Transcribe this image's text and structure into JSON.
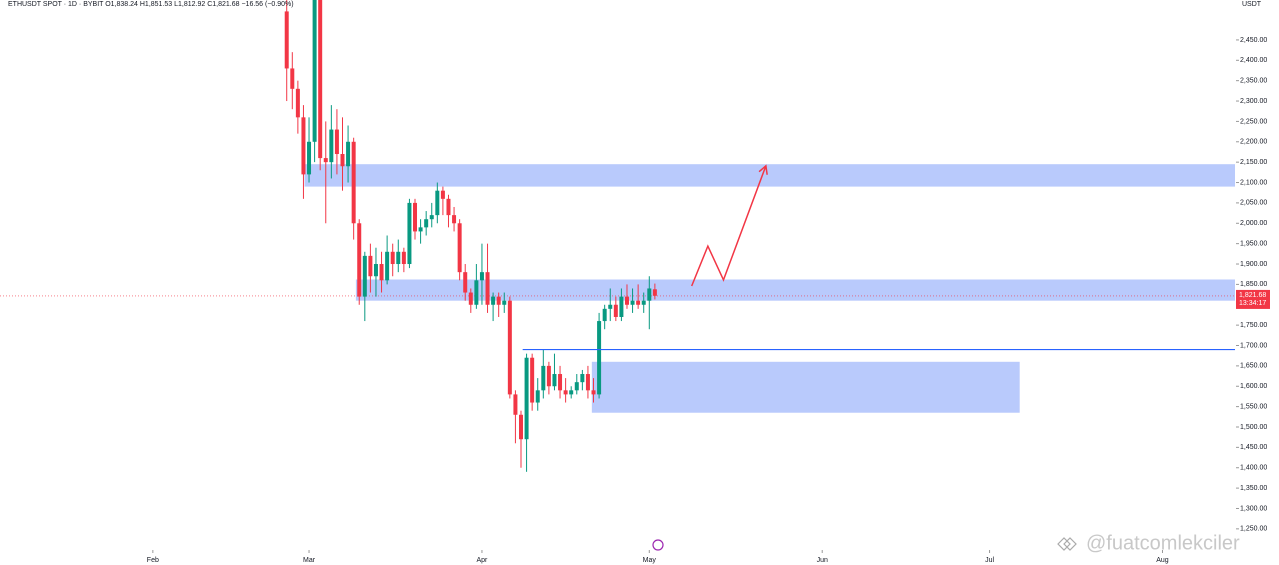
{
  "chart_data": {
    "type": "candlestick",
    "header": "ETHUSDT SPOT · 1D · BYBIT  O1,838.24 H1,851.53 L1,812.92 C1,821.68 −16.56 (−0.90%)",
    "currency": "USDT",
    "watermark": "@fuatcomlekciler",
    "up_color": "#089981",
    "down_color": "#f23645",
    "x": [
      56,
      57,
      58,
      59,
      60,
      61,
      62,
      63,
      64,
      65,
      66,
      67,
      68,
      69,
      70,
      71,
      72,
      73,
      74,
      75,
      76,
      77,
      78,
      79,
      80,
      81,
      82,
      83,
      84,
      85,
      86,
      87,
      88,
      89,
      90,
      91,
      92,
      93,
      94,
      95,
      96,
      97,
      98,
      99,
      100,
      101,
      102,
      103,
      104,
      105,
      106,
      107,
      108,
      109,
      110,
      111,
      112,
      113,
      114,
      115,
      116,
      117,
      118,
      119,
      120,
      121,
      122
    ],
    "open": [
      2520,
      2380,
      2330,
      2260,
      2120,
      2200,
      2550,
      2160,
      2150,
      2230,
      2170,
      2140,
      2200,
      2000,
      1820,
      1920,
      1870,
      1900,
      1860,
      1930,
      1900,
      1930,
      1900,
      2050,
      1980,
      1990,
      2010,
      2020,
      2080,
      2060,
      2020,
      2000,
      1880,
      1830,
      1800,
      1860,
      1880,
      1800,
      1820,
      1800,
      1810,
      1580,
      1530,
      1470,
      1670,
      1560,
      1590,
      1650,
      1600,
      1630,
      1590,
      1580,
      1590,
      1610,
      1630,
      1590,
      1580,
      1760,
      1790,
      1800,
      1770,
      1820,
      1800,
      1810,
      1800,
      1810,
      1838
    ],
    "high": [
      2550,
      2420,
      2350,
      2290,
      2260,
      2560,
      2560,
      2250,
      2290,
      2280,
      2260,
      2240,
      2210,
      2010,
      1930,
      1950,
      1940,
      1930,
      1970,
      1950,
      1960,
      1940,
      2060,
      2060,
      2010,
      2030,
      2050,
      2100,
      2090,
      2070,
      2040,
      2010,
      1900,
      1840,
      1900,
      1950,
      1950,
      1830,
      1830,
      1830,
      1820,
      1590,
      1540,
      1680,
      1680,
      1620,
      1690,
      1660,
      1680,
      1650,
      1620,
      1600,
      1630,
      1640,
      1650,
      1620,
      1780,
      1800,
      1840,
      1820,
      1840,
      1850,
      1840,
      1850,
      1830,
      1870,
      1852
    ],
    "low": [
      2300,
      2280,
      2220,
      2060,
      2100,
      2150,
      2130,
      2000,
      2110,
      2120,
      2080,
      2100,
      1960,
      1800,
      1760,
      1830,
      1820,
      1830,
      1850,
      1870,
      1880,
      1880,
      1890,
      1960,
      1950,
      1970,
      1990,
      2000,
      2020,
      1990,
      1980,
      1860,
      1810,
      1780,
      1790,
      1800,
      1780,
      1760,
      1770,
      1780,
      1570,
      1460,
      1400,
      1390,
      1540,
      1540,
      1570,
      1580,
      1590,
      1570,
      1560,
      1570,
      1580,
      1590,
      1570,
      1560,
      1570,
      1740,
      1760,
      1760,
      1760,
      1790,
      1780,
      1790,
      1780,
      1740,
      1813
    ],
    "close": [
      2380,
      2330,
      2260,
      2120,
      2200,
      2550,
      2160,
      2150,
      2230,
      2170,
      2140,
      2200,
      2000,
      1820,
      1920,
      1870,
      1900,
      1860,
      1930,
      1900,
      1930,
      1900,
      2050,
      1980,
      1990,
      2010,
      2020,
      2080,
      2060,
      2020,
      2000,
      1880,
      1830,
      1800,
      1860,
      1880,
      1800,
      1820,
      1800,
      1810,
      1580,
      1530,
      1470,
      1670,
      1560,
      1590,
      1650,
      1600,
      1630,
      1590,
      1580,
      1590,
      1610,
      1630,
      1590,
      1580,
      1760,
      1790,
      1800,
      1770,
      1820,
      1800,
      1810,
      1800,
      1810,
      1840,
      1822
    ],
    "xlim": [
      4.6,
      226
    ],
    "xticks": [
      {
        "value": 32,
        "label": "Feb"
      },
      {
        "value": 60,
        "label": "Mar"
      },
      {
        "value": 91,
        "label": "Apr"
      },
      {
        "value": 121,
        "label": "May"
      },
      {
        "value": 152,
        "label": "Jun"
      },
      {
        "value": 182,
        "label": "Jul"
      },
      {
        "value": 213,
        "label": "Aug"
      }
    ],
    "ylim": [
      1203,
      2548
    ],
    "yticks": [
      {
        "value": 1250,
        "label": "1,250.00"
      },
      {
        "value": 1300,
        "label": "1,300.00"
      },
      {
        "value": 1350,
        "label": "1,350.00"
      },
      {
        "value": 1400,
        "label": "1,400.00"
      },
      {
        "value": 1450,
        "label": "1,450.00"
      },
      {
        "value": 1500,
        "label": "1,500.00"
      },
      {
        "value": 1550,
        "label": "1,550.00"
      },
      {
        "value": 1600,
        "label": "1,600.00"
      },
      {
        "value": 1650,
        "label": "1,650.00"
      },
      {
        "value": 1700,
        "label": "1,700.00"
      },
      {
        "value": 1750,
        "label": "1,750.00"
      },
      {
        "value": 1800,
        "label": "1,800.00"
      },
      {
        "value": 1850,
        "label": "1,850.00"
      },
      {
        "value": 1900,
        "label": "1,900.00"
      },
      {
        "value": 1950,
        "label": "1,950.00"
      },
      {
        "value": 2000,
        "label": "2,000.00"
      },
      {
        "value": 2050,
        "label": "2,050.00"
      },
      {
        "value": 2100,
        "label": "2,100.00"
      },
      {
        "value": 2150,
        "label": "2,150.00"
      },
      {
        "value": 2200,
        "label": "2,200.00"
      },
      {
        "value": 2250,
        "label": "2,250.00"
      },
      {
        "value": 2300,
        "label": "2,300.00"
      },
      {
        "value": 2350,
        "label": "2,350.00"
      },
      {
        "value": 2400,
        "label": "2,400.00"
      },
      {
        "value": 2450,
        "label": "2,450.00"
      }
    ],
    "last_price": {
      "value": 1821.68,
      "label": "1,821.68"
    },
    "countdown": "13:34:17",
    "zone_color": "#b9cafc",
    "zones": [
      {
        "x": [
          59.2,
          226
        ],
        "y": [
          2090,
          2145
        ]
      },
      {
        "x": [
          68.4,
          226
        ],
        "y": [
          1810,
          1862
        ]
      },
      {
        "x": [
          110.7,
          187.4
        ],
        "y": [
          1535,
          1660
        ]
      }
    ],
    "level": {
      "x": [
        98.3,
        226
      ],
      "y": 1690,
      "color": "#2962ff"
    },
    "arrow": {
      "x": [
        128.6,
        131.5,
        134.3,
        141.9
      ],
      "y": [
        1846,
        1944,
        1861,
        2141
      ],
      "color": "#f23645"
    }
  }
}
